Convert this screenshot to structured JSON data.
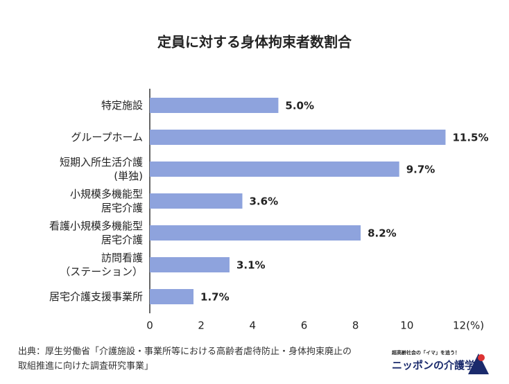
{
  "chart_data": {
    "type": "bar",
    "orientation": "horizontal",
    "title": "定員に対する身体拘束者数割合",
    "categories": [
      "特定施設",
      "グループホーム",
      "短期入所生活介護\n(単独)",
      "小規模多機能型\n居宅介護",
      "看護小規模多機能型\n居宅介護",
      "訪問看護\n（ステーション）",
      "居宅介護支援事業所"
    ],
    "values": [
      5.0,
      11.5,
      9.7,
      3.6,
      8.2,
      3.1,
      1.7
    ],
    "value_labels": [
      "5.0%",
      "11.5%",
      "9.7%",
      "3.6%",
      "8.2%",
      "3.1%",
      "1.7%"
    ],
    "color": "#8ea3dd",
    "xlim": [
      0,
      12
    ],
    "xticks": [
      0,
      2,
      4,
      6,
      8,
      10,
      {
        "value": 12,
        "label": "12(%)"
      }
    ],
    "source": "出典：厚生労働省「介護施設・事業所等における高齢者虐待防止・身体拘束廃止の\n取組推進に向けた調査研究事業」",
    "logo": {
      "tagline": "超高齢社会の「イマ」を追う！",
      "name": "ニッポンの介護学"
    }
  }
}
